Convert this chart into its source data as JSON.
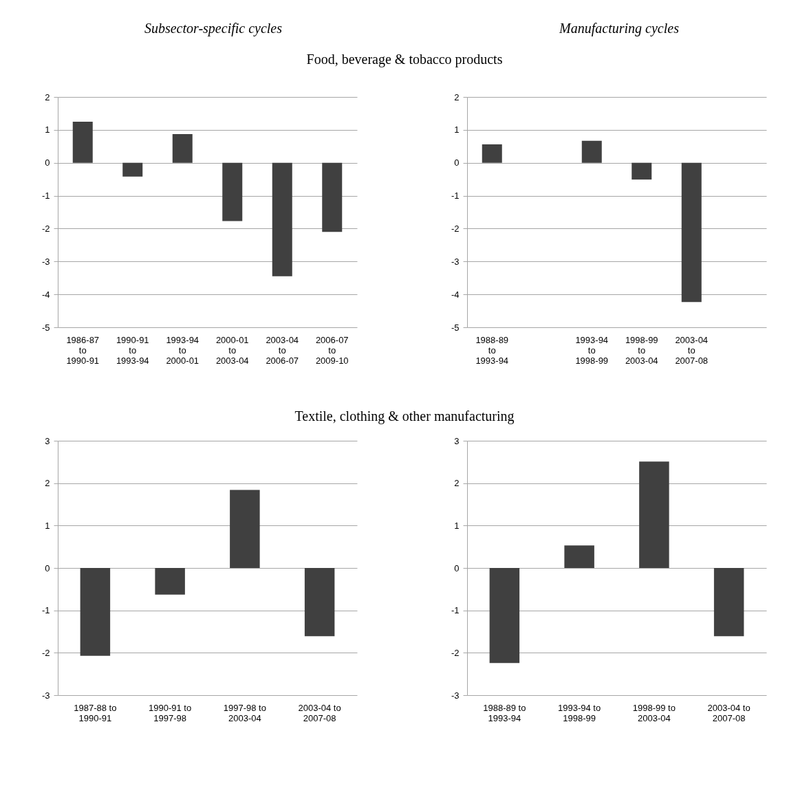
{
  "chart_data": [
    {
      "type": "bar",
      "title": "Subsector-specific cycles",
      "subtitle": "Food, beverage & tobacco products",
      "categories": [
        "1986-87 to 1990-91",
        "1990-91 to 1993-94",
        "1993-94 to 2000-01",
        "2000-01 to 2003-04",
        "2003-04 to 2006-07",
        "2006-07 to 2009-10"
      ],
      "values": [
        1.25,
        -0.42,
        0.87,
        -1.77,
        -3.45,
        -2.1
      ],
      "color": "#404040",
      "ylim": [
        -5,
        2
      ],
      "yticks": [
        -5,
        -4,
        -3,
        -2,
        -1,
        0,
        1,
        2
      ],
      "grid": "y"
    },
    {
      "type": "bar",
      "title": "Manufacturing cycles",
      "categories": [
        "1988-89 to 1993-94",
        null,
        "1993-94 to 1998-99",
        "1998-99 to 2003-04",
        "2003-04 to 2007-08",
        null
      ],
      "values": [
        0.56,
        null,
        0.67,
        -0.51,
        -4.23,
        null
      ],
      "color": "#404040",
      "ylim": [
        -5,
        2
      ],
      "yticks": [
        -5,
        -4,
        -3,
        -2,
        -1,
        0,
        1,
        2
      ],
      "grid": "y"
    },
    {
      "type": "bar",
      "subtitle": "Textile, clothing & other manufacturing",
      "categories": [
        "1987-88 to 1990-91",
        "1990-91 to 1997-98",
        "1997-98 to 2003-04",
        "2003-04 to 2007-08"
      ],
      "values": [
        -2.07,
        -0.63,
        1.84,
        -1.61
      ],
      "color": "#404040",
      "ylim": [
        -3,
        3
      ],
      "yticks": [
        -3,
        -2,
        -1,
        0,
        1,
        2,
        3
      ],
      "grid": "y"
    },
    {
      "type": "bar",
      "categories": [
        "1988-89 to 1993-94",
        "1993-94 to 1998-99",
        "1998-99 to 2003-04",
        "2003-04 to 2007-08"
      ],
      "values": [
        -2.24,
        0.53,
        2.51,
        -1.61
      ],
      "color": "#404040",
      "ylim": [
        -3,
        3
      ],
      "yticks": [
        -3,
        -2,
        -1,
        0,
        1,
        2,
        3
      ],
      "grid": "y"
    }
  ]
}
